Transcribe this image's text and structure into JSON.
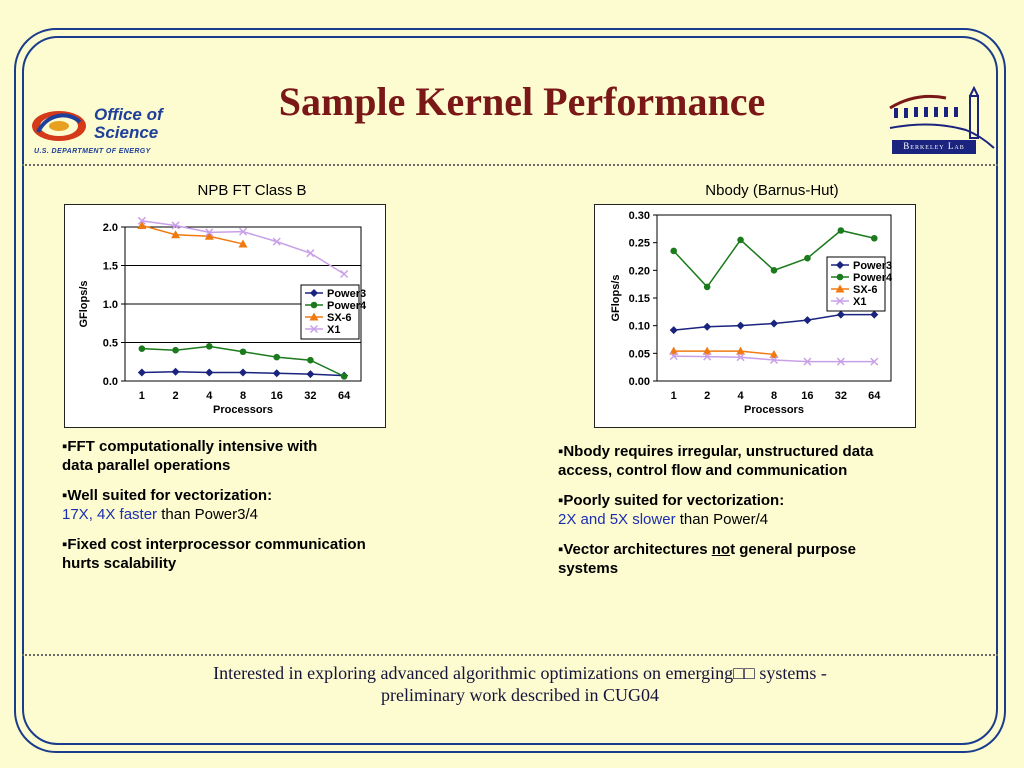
{
  "slide": {
    "title": "Sample Kernel Performance",
    "doe_logo": {
      "line1": "Office of",
      "line2": "Science",
      "sub": "U.S. DEPARTMENT OF ENERGY"
    },
    "berkeley_logo": {
      "label": "Berkeley Lab"
    },
    "footer_line1": "Interested in exploring advanced algorithmic optimizations on emerging□□ systems -",
    "footer_line2": "preliminary work described in CUG04"
  },
  "left": {
    "caption": "NPB FT Class B",
    "bullets": [
      {
        "a": "FFT computationally intensive with",
        "b": " data parallel operations"
      },
      {
        "a": "Well suited for vectorization:",
        "b_blue": "17X, 4X faster",
        "b_rest": " than Power3/4"
      },
      {
        "a": "Fixed cost interprocessor communication",
        "b": " hurts scalability"
      }
    ]
  },
  "right": {
    "caption": "Nbody (Barnus-Hut)",
    "bullets": [
      {
        "a": "Nbody requires irregular, unstructured data",
        "b": "access, control flow and communication"
      },
      {
        "a": "Poorly suited for vectorization:",
        "b_blue": "2X and 5X slower",
        "b_rest": " than Power/4"
      },
      {
        "a_pre": "Vector architectures ",
        "a_ul": "no",
        "a_post": "t general purpose",
        "b": "systems"
      }
    ]
  },
  "chart_data": [
    {
      "type": "line",
      "title": "NPB FT Class B",
      "xlabel": "Processors",
      "ylabel": "GFlops/s",
      "categories": [
        "1",
        "2",
        "4",
        "8",
        "16",
        "32",
        "64"
      ],
      "ylim": [
        0,
        2.0
      ],
      "yticks": [
        "0.0",
        "0.5",
        "1.0",
        "1.5",
        "2.0"
      ],
      "ytick_values": [
        0,
        0.5,
        1.0,
        1.5,
        2.0
      ],
      "grid": true,
      "legend_position": "right",
      "series": [
        {
          "name": "Power3",
          "color": "#1a237e",
          "marker": "diamond",
          "values": [
            0.11,
            0.12,
            0.11,
            0.11,
            0.1,
            0.09,
            0.07
          ]
        },
        {
          "name": "Power4",
          "color": "#1b7a1b",
          "marker": "circle",
          "values": [
            0.42,
            0.4,
            0.45,
            0.38,
            0.31,
            0.27,
            0.06
          ]
        },
        {
          "name": "SX-6",
          "color": "#f07a10",
          "marker": "triangle",
          "values": [
            2.02,
            1.9,
            1.88,
            1.78,
            null,
            null,
            null
          ]
        },
        {
          "name": "X1",
          "color": "#c9a0e8",
          "marker": "x",
          "values": [
            2.08,
            2.02,
            1.93,
            1.94,
            1.81,
            1.66,
            1.39
          ]
        }
      ]
    },
    {
      "type": "line",
      "title": "Nbody (Barnus-Hut)",
      "xlabel": "Processors",
      "ylabel": "GFlops/s",
      "categories": [
        "1",
        "2",
        "4",
        "8",
        "16",
        "32",
        "64"
      ],
      "ylim": [
        0,
        0.3
      ],
      "yticks": [
        "0.00",
        "0.05",
        "0.10",
        "0.15",
        "0.20",
        "0.25",
        "0.30"
      ],
      "ytick_values": [
        0,
        0.05,
        0.1,
        0.15,
        0.2,
        0.25,
        0.3
      ],
      "grid": false,
      "legend_position": "right",
      "series": [
        {
          "name": "Power3",
          "color": "#1a237e",
          "marker": "diamond",
          "values": [
            0.092,
            0.098,
            0.1,
            0.104,
            0.11,
            0.12,
            0.12
          ]
        },
        {
          "name": "Power4",
          "color": "#1b7a1b",
          "marker": "circle",
          "values": [
            0.235,
            0.17,
            0.255,
            0.2,
            0.222,
            0.272,
            0.258
          ]
        },
        {
          "name": "SX-6",
          "color": "#f07a10",
          "marker": "triangle",
          "values": [
            0.054,
            0.054,
            0.054,
            0.048,
            null,
            null,
            null
          ]
        },
        {
          "name": "X1",
          "color": "#c9a0e8",
          "marker": "x",
          "values": [
            0.045,
            0.044,
            0.043,
            0.038,
            0.035,
            0.035,
            0.035
          ]
        }
      ]
    }
  ]
}
